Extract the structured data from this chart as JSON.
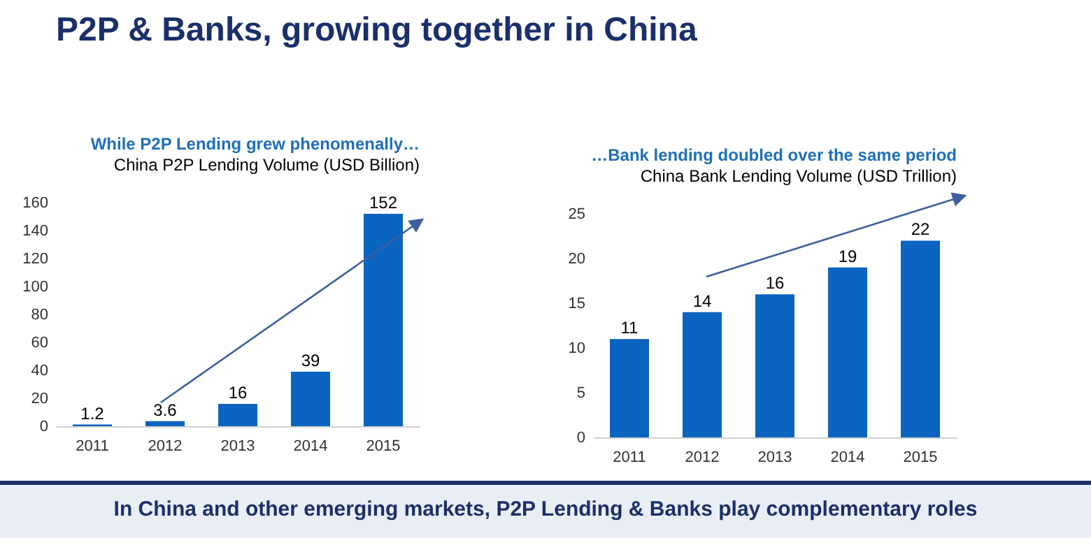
{
  "chart_data": [
    {
      "type": "bar",
      "title": "While P2P Lending grew phenomenally…",
      "subtitle": "China P2P Lending Volume (USD Billion)",
      "annotations": [
        "P2P & Banks, growing together in China",
        "In China and other emerging markets, P2P Lending & Banks play complementary roles"
      ],
      "categories": [
        "2011",
        "2012",
        "2013",
        "2014",
        "2015"
      ],
      "values": [
        1.2,
        3.6,
        16,
        39,
        152
      ],
      "color": "#0b64c0",
      "ylim": [
        0,
        160
      ],
      "yticks": [
        0,
        20,
        40,
        60,
        80,
        100,
        120,
        140,
        160
      ],
      "data_labels": true
    },
    {
      "type": "bar",
      "title": "…Bank lending doubled over the same period",
      "subtitle": "China Bank Lending Volume (USD Trillion)",
      "categories": [
        "2011",
        "2012",
        "2013",
        "2014",
        "2015"
      ],
      "values": [
        11,
        14,
        16,
        19,
        22
      ],
      "color": "#0b64c0",
      "ylim": [
        0,
        25
      ],
      "yticks": [
        0,
        5,
        10,
        15,
        20,
        25
      ],
      "data_labels": true
    }
  ]
}
